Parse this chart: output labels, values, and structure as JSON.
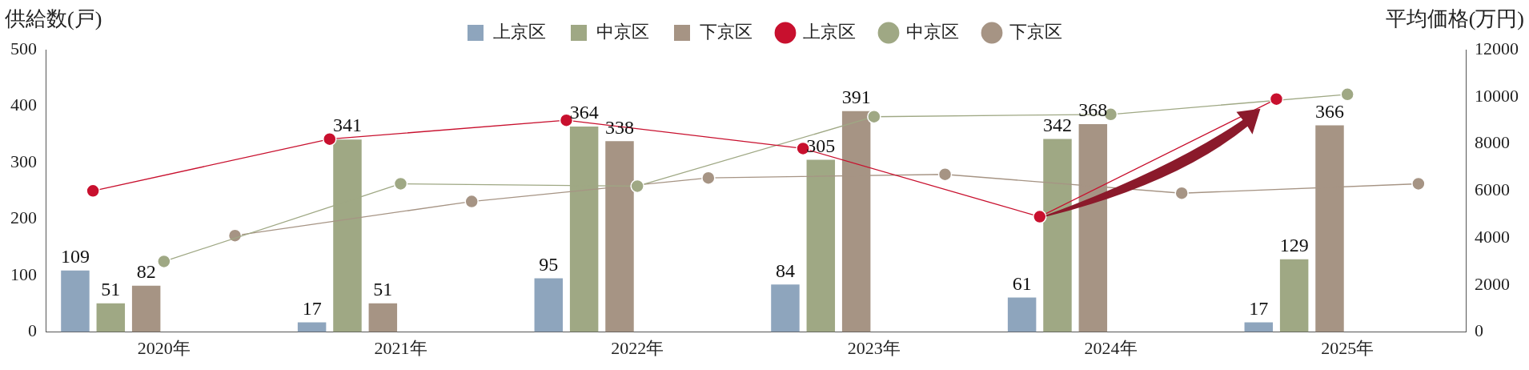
{
  "chart_data": {
    "type": "bar",
    "ylabel": "供給数(戸)",
    "y2label": "平均価格(万円)",
    "categories": [
      "2020年",
      "2021年",
      "2022年",
      "2023年",
      "2024年",
      "2025年"
    ],
    "series": [
      {
        "name": "上京区",
        "color": "#8ea5bd",
        "values": [
          109,
          17,
          95,
          84,
          61,
          17
        ],
        "value_labels": [
          "109",
          "17",
          "95",
          "84",
          "61",
          "17"
        ]
      },
      {
        "name": "中京区",
        "color": "#9fa884",
        "values": [
          51,
          341,
          364,
          305,
          342,
          129
        ],
        "value_labels": [
          "51",
          "341",
          "364",
          "305",
          "342",
          "129"
        ]
      },
      {
        "name": "下京区",
        "color": "#a69484",
        "values": [
          82,
          51,
          338,
          391,
          368,
          366
        ],
        "value_labels": [
          "82",
          "51",
          "338",
          "391",
          "368",
          "366"
        ]
      },
      {
        "name": "上京区",
        "type": "line",
        "axis": "y2",
        "color": "#c8102e",
        "values": [
          6000,
          8200,
          9000,
          7800,
          4900,
          9900
        ]
      },
      {
        "name": "中京区",
        "type": "line",
        "axis": "y2",
        "color": "#9fa884",
        "values": [
          3000,
          6300,
          6200,
          9150,
          9250,
          10100
        ]
      },
      {
        "name": "下京区",
        "type": "line",
        "axis": "y2",
        "color": "#a69484",
        "values": [
          4100,
          5550,
          6550,
          6700,
          5900,
          6300
        ]
      }
    ],
    "ylim": [
      0,
      500
    ],
    "yticks": [
      0,
      100,
      200,
      300,
      400,
      500
    ],
    "y2lim": [
      0,
      12000
    ],
    "y2ticks": [
      0,
      2000,
      4000,
      6000,
      8000,
      10000,
      12000
    ],
    "legend": "top",
    "grid": false,
    "marker": "circle",
    "line_style": "solid"
  }
}
